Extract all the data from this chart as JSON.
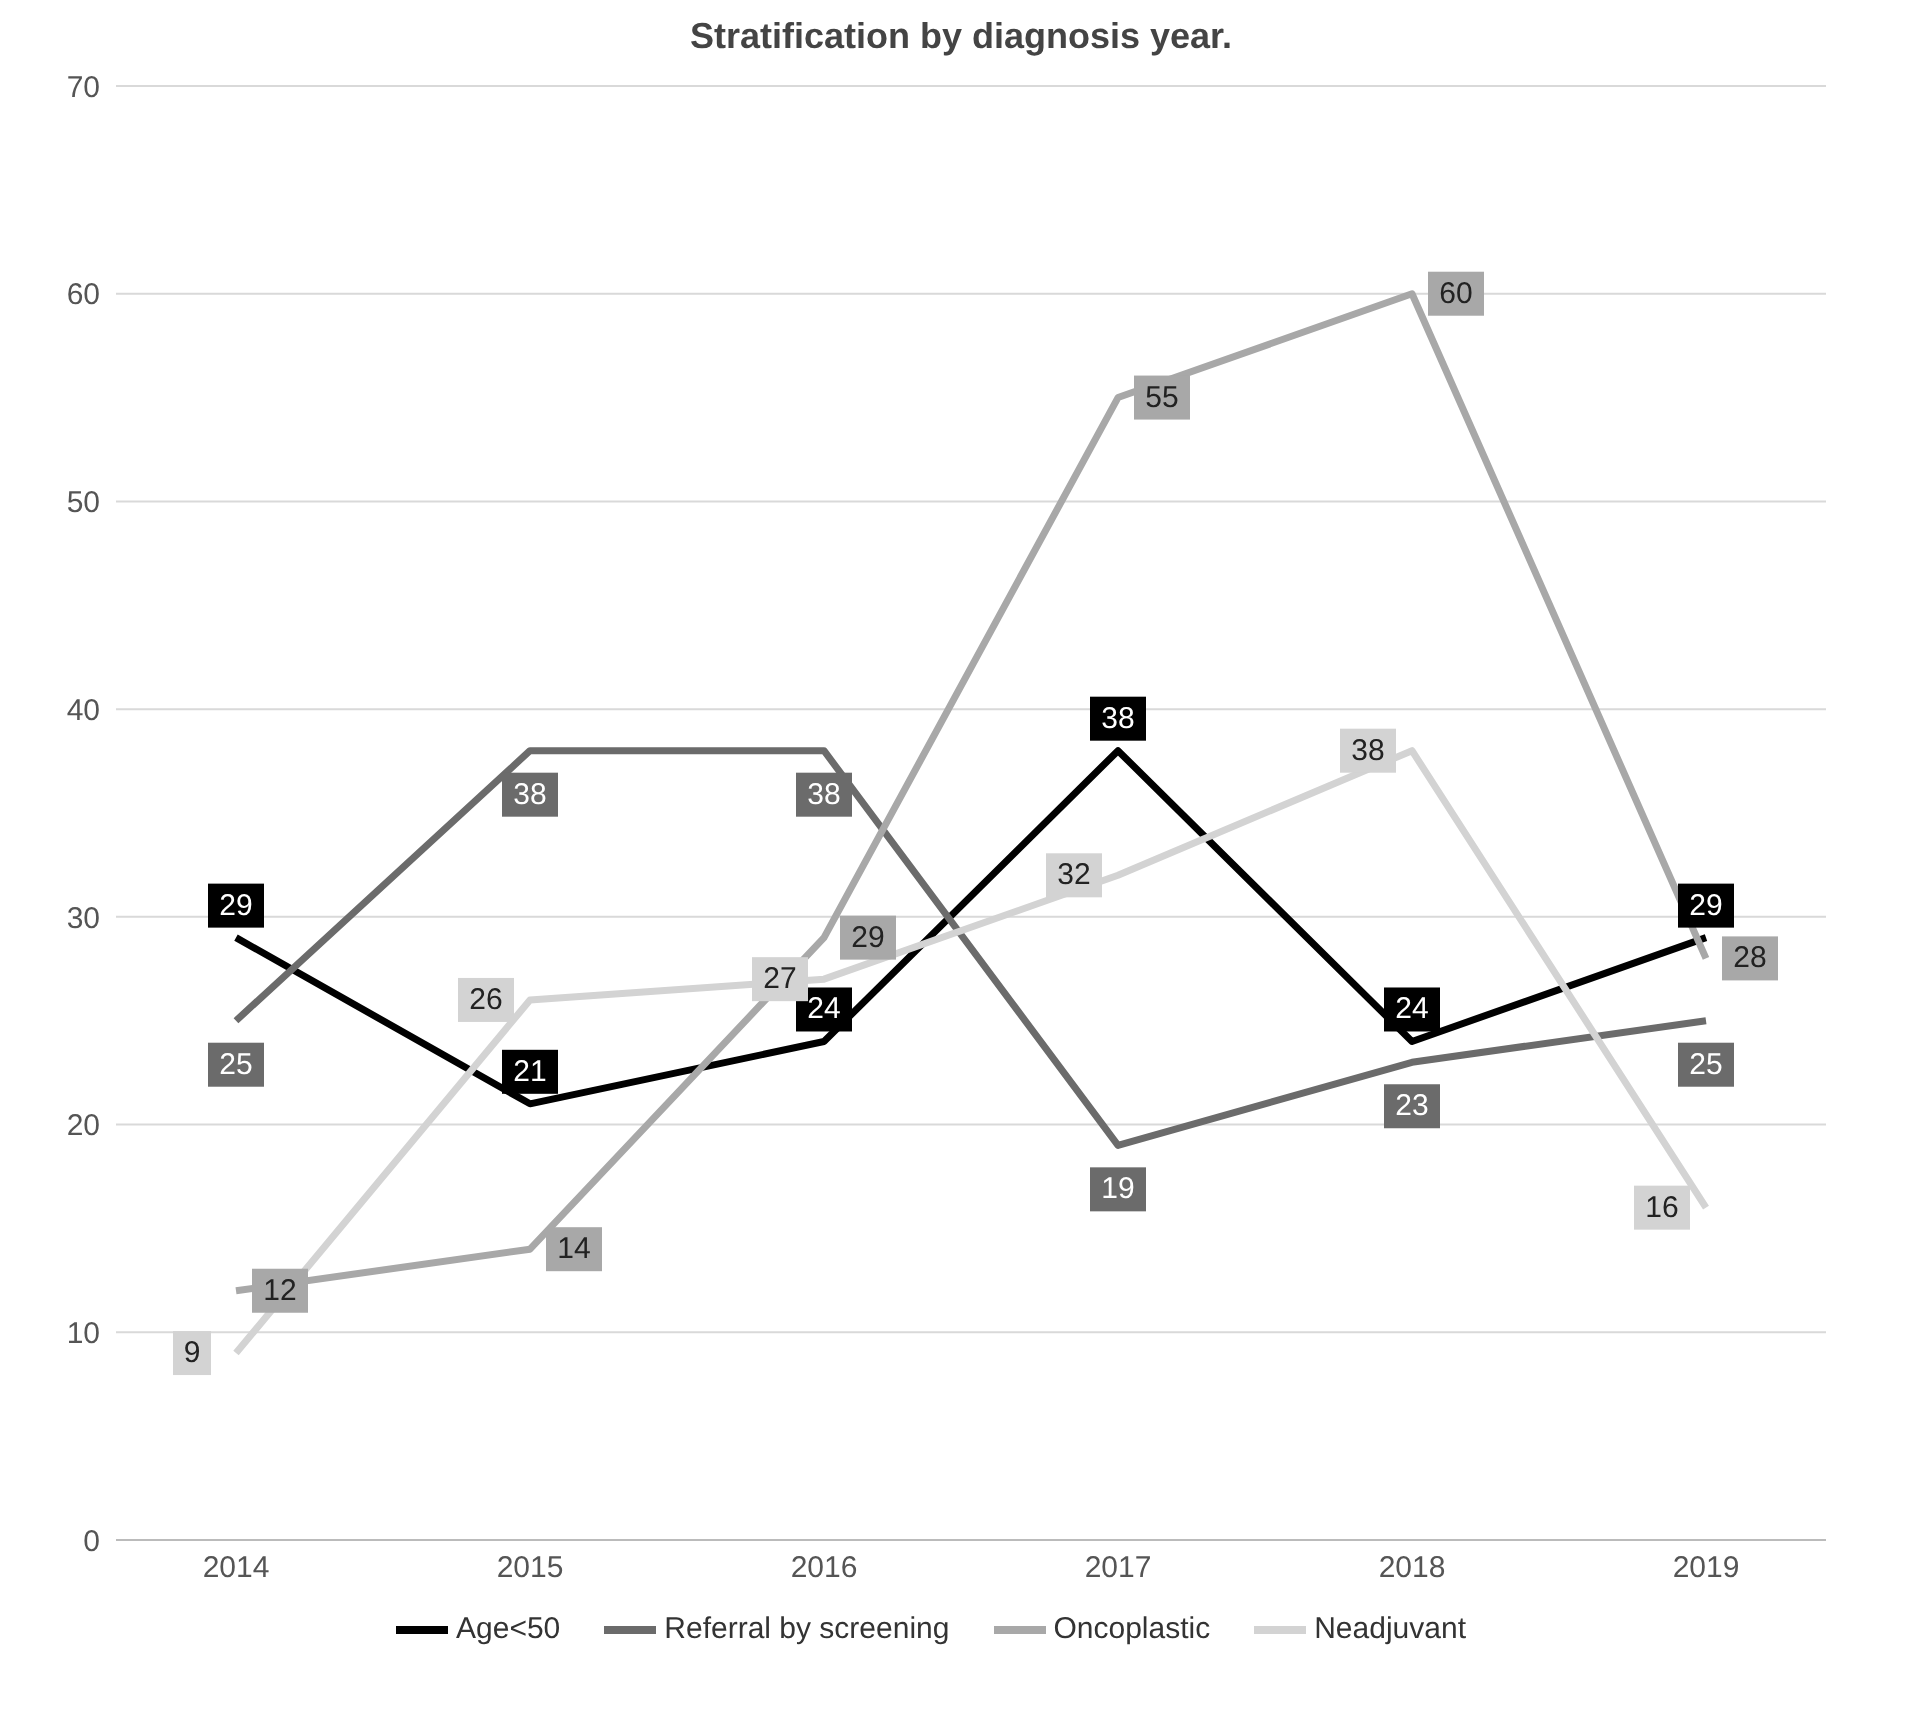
{
  "chart_data": {
    "type": "line",
    "title": "Stratification by diagnosis year.",
    "categories": [
      "2014",
      "2015",
      "2016",
      "2017",
      "2018",
      "2019"
    ],
    "series": [
      {
        "name": "Age<50",
        "color": "#000000",
        "values": [
          29,
          21,
          24,
          38,
          24,
          29
        ]
      },
      {
        "name": "Referral by screening",
        "color": "#6b6b6b",
        "values": [
          25,
          38,
          38,
          19,
          23,
          25
        ]
      },
      {
        "name": "Oncoplastic",
        "color": "#a8a8a8",
        "values": [
          12,
          14,
          29,
          55,
          60,
          28
        ]
      },
      {
        "name": "Neadjuvant",
        "color": "#d3d3d3",
        "values": [
          9,
          26,
          27,
          32,
          38,
          16
        ]
      }
    ],
    "ylim": [
      0,
      70
    ],
    "yticks": [
      0,
      10,
      20,
      30,
      40,
      50,
      60,
      70
    ],
    "grid": "y",
    "legend": "bottom",
    "data_labels": true,
    "marker": "none",
    "line_style": "solid"
  }
}
